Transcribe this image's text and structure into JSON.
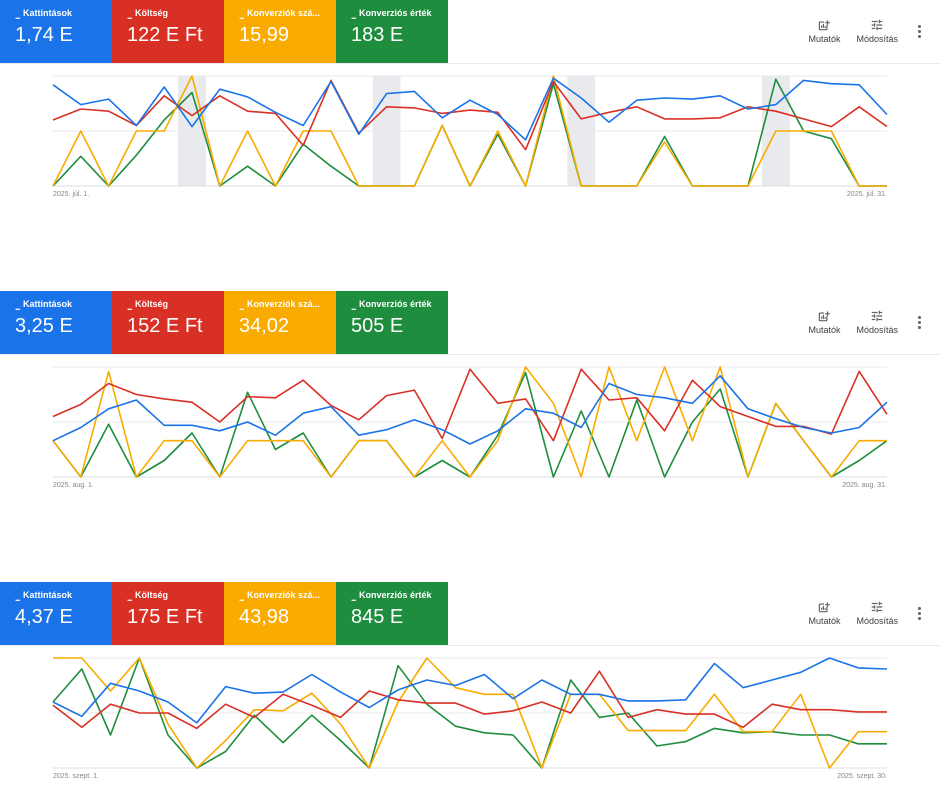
{
  "colors": {
    "clicks": "#1a73e8",
    "cost": "#d93025",
    "conv": "#f9ab00",
    "value": "#1e8e3e",
    "grid": "#e8eaed",
    "shade": "#e8eaed"
  },
  "toolbar": {
    "metrics_label": "Mutatók",
    "metrics_icon": "add-chart-icon",
    "adjust_label": "Módosítás",
    "adjust_icon": "tune-icon",
    "more_icon": "more-vert-icon"
  },
  "panels": [
    {
      "tiles": [
        {
          "label": "Kattintások",
          "value": "1,74 E"
        },
        {
          "label": "Költség",
          "value": "122 E Ft"
        },
        {
          "label": "Konverziók szá...",
          "value": "15,99"
        },
        {
          "label": "Konverziós érték",
          "value": "183 E"
        }
      ],
      "x_start_label": "2025. júl. 1.",
      "x_end_label": "2025. júl. 31."
    },
    {
      "tiles": [
        {
          "label": "Kattintások",
          "value": "3,25 E"
        },
        {
          "label": "Költség",
          "value": "152 E Ft"
        },
        {
          "label": "Konverziók szá...",
          "value": "34,02"
        },
        {
          "label": "Konverziós érték",
          "value": "505 E"
        }
      ],
      "x_start_label": "2025. aug. 1.",
      "x_end_label": "2025. aug. 31."
    },
    {
      "tiles": [
        {
          "label": "Kattintások",
          "value": "4,37 E"
        },
        {
          "label": "Költség",
          "value": "175 E Ft"
        },
        {
          "label": "Konverziók szá...",
          "value": "43,98"
        },
        {
          "label": "Konverziós érték",
          "value": "845 E"
        }
      ],
      "x_start_label": "2025. szept. 1.",
      "x_end_label": "2025. szept. 30."
    }
  ],
  "chart_data": [
    {
      "type": "line",
      "x_start": "2025-07-01",
      "x_end": "2025-07-31",
      "grid": true,
      "shaded_days": [
        5,
        12,
        19,
        26
      ],
      "series": [
        {
          "name": "Kattintások",
          "values": [
            0.92,
            0.74,
            0.79,
            0.55,
            0.9,
            0.54,
            0.88,
            0.81,
            0.67,
            0.55,
            0.95,
            0.47,
            0.84,
            0.86,
            0.62,
            0.78,
            0.65,
            0.42,
            0.98,
            0.8,
            0.58,
            0.78,
            0.8,
            0.79,
            0.82,
            0.7,
            0.74,
            0.96,
            0.93,
            0.92,
            0.65
          ]
        },
        {
          "name": "Költség",
          "values": [
            0.6,
            0.7,
            0.68,
            0.55,
            0.82,
            0.64,
            0.82,
            0.68,
            0.66,
            0.37,
            0.96,
            0.48,
            0.72,
            0.71,
            0.66,
            0.69,
            0.67,
            0.33,
            0.95,
            0.61,
            0.67,
            0.72,
            0.61,
            0.61,
            0.62,
            0.72,
            0.68,
            0.61,
            0.54,
            0.72,
            0.54
          ]
        },
        {
          "name": "Konverziók száma",
          "values": [
            0,
            0.5,
            0,
            0.5,
            0.5,
            1.0,
            0,
            0.5,
            0,
            0.5,
            0.5,
            0,
            0,
            0,
            0.55,
            0,
            0.5,
            0,
            1.0,
            0,
            0,
            0,
            0.4,
            0,
            0,
            0,
            0.5,
            0.5,
            0.5,
            0,
            0
          ]
        },
        {
          "name": "Konverziós érték",
          "values": [
            0,
            0.27,
            0,
            0.28,
            0.6,
            0.85,
            0,
            0.18,
            0,
            0.38,
            0.18,
            0,
            0,
            0,
            0.55,
            0,
            0.47,
            0,
            0.93,
            0,
            0,
            0,
            0.45,
            0,
            0,
            0,
            0.97,
            0.5,
            0.43,
            0,
            0
          ]
        }
      ]
    },
    {
      "type": "line",
      "x_start": "2025-08-01",
      "x_end": "2025-08-31",
      "grid": true,
      "shaded_days": [],
      "series": [
        {
          "name": "Kattintások",
          "values": [
            0.33,
            0.45,
            0.62,
            0.7,
            0.47,
            0.47,
            0.42,
            0.5,
            0.38,
            0.58,
            0.64,
            0.38,
            0.43,
            0.52,
            0.43,
            0.3,
            0.42,
            0.62,
            0.58,
            0.45,
            0.85,
            0.75,
            0.72,
            0.67,
            0.92,
            0.62,
            0.53,
            0.45,
            0.4,
            0.45,
            0.68
          ]
        },
        {
          "name": "Költség",
          "values": [
            0.55,
            0.66,
            0.85,
            0.75,
            0.71,
            0.68,
            0.5,
            0.73,
            0.72,
            0.88,
            0.65,
            0.52,
            0.74,
            0.79,
            0.35,
            0.98,
            0.67,
            0.71,
            0.33,
            0.98,
            0.7,
            0.72,
            0.42,
            0.88,
            0.64,
            0.55,
            0.46,
            0.46,
            0.39,
            0.96,
            0.57
          ]
        },
        {
          "name": "Konverziók száma",
          "values": [
            0.33,
            0,
            0.96,
            0,
            0.33,
            0.33,
            0,
            0.33,
            0.33,
            0.33,
            0,
            0.33,
            0.33,
            0,
            0.33,
            0,
            0.33,
            1.0,
            0.67,
            0,
            1.0,
            0.33,
            1.0,
            0.33,
            1.0,
            0,
            0.67,
            0.33,
            0,
            0.33,
            0.33
          ]
        },
        {
          "name": "Konverziós érték",
          "values": [
            0.33,
            0,
            0.48,
            0,
            0.15,
            0.4,
            0,
            0.77,
            0.25,
            0.4,
            0,
            0.33,
            0.33,
            0,
            0.15,
            0,
            0.38,
            0.95,
            0,
            0.6,
            0,
            0.7,
            0,
            0.5,
            0.8,
            0,
            0.67,
            0.33,
            0,
            0.15,
            0.33
          ]
        }
      ]
    },
    {
      "type": "line",
      "x_start": "2025-09-01",
      "x_end": "2025-09-30",
      "grid": true,
      "shaded_days": [],
      "series": [
        {
          "name": "Kattintások",
          "values": [
            0.6,
            0.47,
            0.77,
            0.7,
            0.6,
            0.41,
            0.74,
            0.68,
            0.69,
            0.85,
            0.69,
            0.55,
            0.71,
            0.8,
            0.75,
            0.85,
            0.63,
            0.8,
            0.67,
            0.67,
            0.61,
            0.61,
            0.62,
            0.95,
            0.73,
            0.8,
            0.87,
            1.0,
            0.91,
            0.9
          ]
        },
        {
          "name": "Költség",
          "values": [
            0.57,
            0.37,
            0.58,
            0.5,
            0.5,
            0.36,
            0.58,
            0.46,
            0.67,
            0.57,
            0.46,
            0.7,
            0.62,
            0.59,
            0.59,
            0.49,
            0.52,
            0.6,
            0.5,
            0.88,
            0.46,
            0.53,
            0.49,
            0.49,
            0.37,
            0.58,
            0.53,
            0.53,
            0.51,
            0.51
          ]
        },
        {
          "name": "Konverziók száma",
          "values": [
            1.0,
            1.0,
            0.7,
            1.0,
            0.4,
            0,
            0.25,
            0.53,
            0.52,
            0.68,
            0.4,
            0,
            0.6,
            1.0,
            0.73,
            0.67,
            0.67,
            0,
            0.67,
            0.67,
            0.34,
            0.34,
            0.34,
            0.67,
            0.33,
            0.33,
            0.67,
            0,
            0.33,
            0.33
          ]
        },
        {
          "name": "Konverziós érték",
          "values": [
            0.6,
            0.9,
            0.3,
            1.0,
            0.3,
            0,
            0.15,
            0.48,
            0.23,
            0.48,
            0.25,
            0,
            0.93,
            0.58,
            0.38,
            0.32,
            0.3,
            0,
            0.8,
            0.46,
            0.5,
            0.2,
            0.24,
            0.36,
            0.32,
            0.33,
            0.3,
            0.3,
            0.22,
            0.22
          ]
        }
      ]
    }
  ]
}
